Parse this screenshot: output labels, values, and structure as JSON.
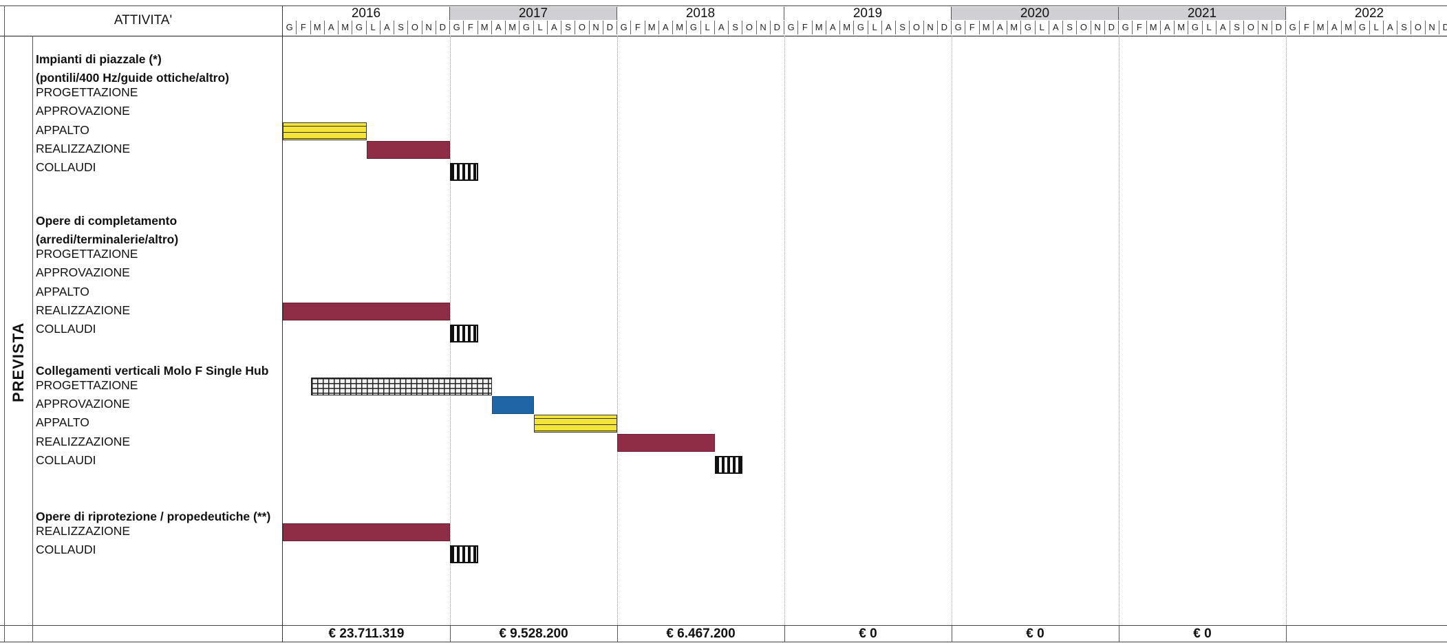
{
  "header": {
    "activity_label": "ATTIVITA'",
    "years": [
      "2016",
      "2017",
      "2018",
      "2019",
      "2020",
      "2021",
      "2022"
    ],
    "months": [
      "G",
      "F",
      "M",
      "A",
      "M",
      "G",
      "L",
      "A",
      "S",
      "O",
      "N",
      "D"
    ]
  },
  "side_label": "PREVISTA",
  "sections": [
    {
      "title_lines": [
        "Impianti di piazzale (*)",
        "(pontili/400 Hz/guide ottiche/altro)"
      ],
      "phases": [
        "PROGETTAZIONE",
        "APPROVAZIONE",
        "APPALTO",
        "REALIZZAZIONE",
        "COLLAUDI"
      ]
    },
    {
      "title_lines": [
        "Opere di completamento",
        "(arredi/terminalerie/altro)"
      ],
      "phases": [
        "PROGETTAZIONE",
        "APPROVAZIONE",
        "APPALTO",
        "REALIZZAZIONE",
        "COLLAUDI"
      ]
    },
    {
      "title_lines": [
        "Collegamenti verticali Molo F Single Hub"
      ],
      "phases": [
        "PROGETTAZIONE",
        "APPROVAZIONE",
        "APPALTO",
        "REALIZZAZIONE",
        "COLLAUDI"
      ]
    },
    {
      "title_lines": [
        "Opere di riprotezione / propedeutiche (**)"
      ],
      "phases": [
        "REALIZZAZIONE",
        "COLLAUDI"
      ]
    }
  ],
  "gantt_bars": [
    {
      "section": 0,
      "phase": "APPALTO",
      "start": "2016-01",
      "end": "2016-06",
      "color": "#f4e43a"
    },
    {
      "section": 0,
      "phase": "REALIZZAZIONE",
      "start": "2016-07",
      "end": "2016-12",
      "color": "#8e2d45"
    },
    {
      "section": 0,
      "phase": "COLLAUDI",
      "start": "2017-01",
      "end": "2017-02",
      "color": "#111111"
    },
    {
      "section": 1,
      "phase": "REALIZZAZIONE",
      "start": "2016-01",
      "end": "2016-12",
      "color": "#8e2d45"
    },
    {
      "section": 1,
      "phase": "COLLAUDI",
      "start": "2017-01",
      "end": "2017-02",
      "color": "#111111"
    },
    {
      "section": 2,
      "phase": "PROGETTAZIONE",
      "start": "2016-03",
      "end": "2017-03",
      "color": "#222222"
    },
    {
      "section": 2,
      "phase": "APPROVAZIONE",
      "start": "2017-04",
      "end": "2017-06",
      "color": "#1f66a6"
    },
    {
      "section": 2,
      "phase": "APPALTO",
      "start": "2017-07",
      "end": "2017-12",
      "color": "#f4e43a"
    },
    {
      "section": 2,
      "phase": "REALIZZAZIONE",
      "start": "2018-01",
      "end": "2018-07",
      "color": "#8e2d45"
    },
    {
      "section": 2,
      "phase": "COLLAUDI",
      "start": "2018-08",
      "end": "2018-09",
      "color": "#111111"
    },
    {
      "section": 3,
      "phase": "REALIZZAZIONE",
      "start": "2016-01",
      "end": "2016-12",
      "color": "#8e2d45"
    },
    {
      "section": 3,
      "phase": "COLLAUDI",
      "start": "2017-01",
      "end": "2017-02",
      "color": "#111111"
    }
  ],
  "totals": [
    "€ 23.711.319",
    "€ 9.528.200",
    "€ 6.467.200",
    "€ 0",
    "€ 0",
    "€ 0",
    ""
  ]
}
